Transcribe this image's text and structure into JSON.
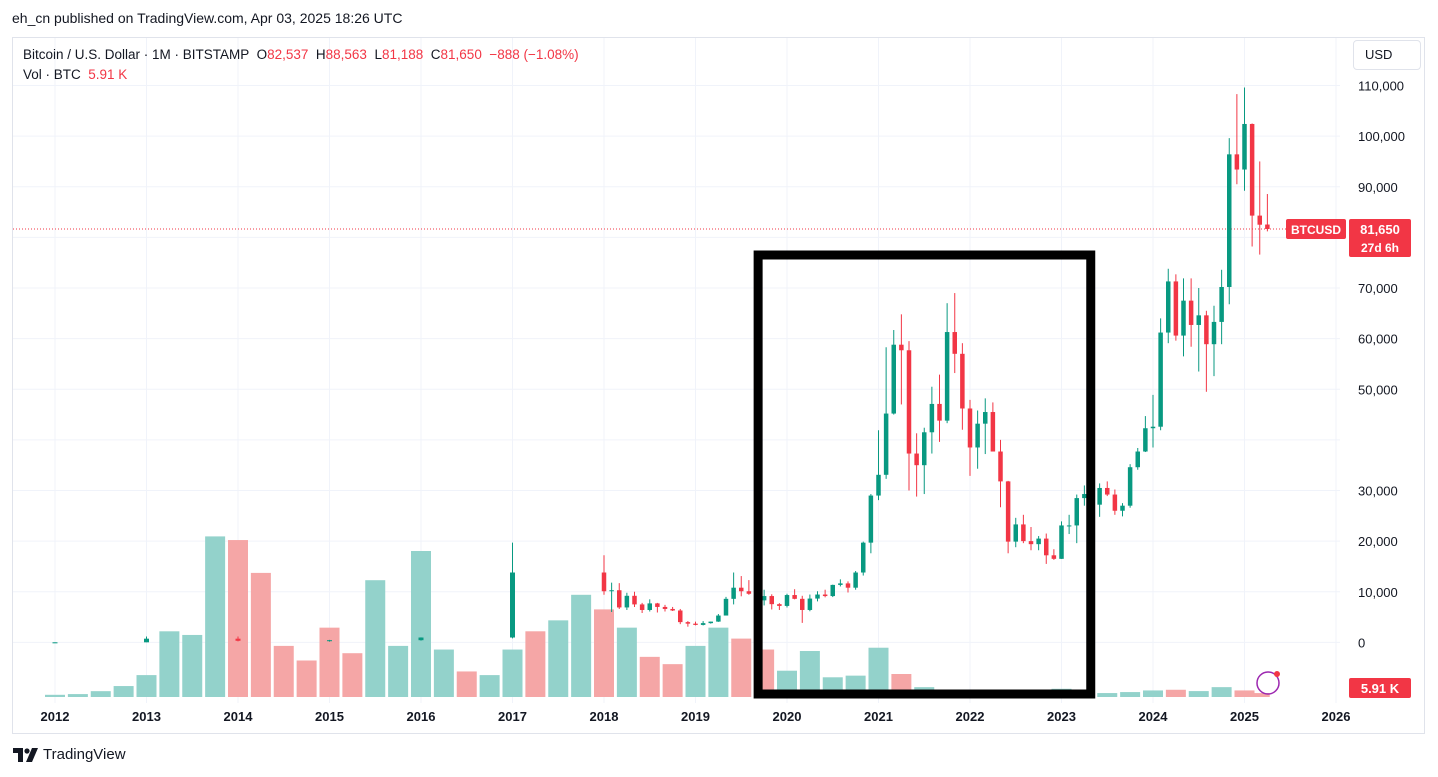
{
  "header": {
    "publisher_line": "eh_cn published on TradingView.com, Apr 03, 2025 18:26 UTC"
  },
  "legend": {
    "symbol": "Bitcoin / U.S. Dollar · 1M · BITSTAMP",
    "open_label": "O",
    "open": "82,537",
    "high_label": "H",
    "high": "88,563",
    "low_label": "L",
    "low": "81,188",
    "close_label": "C",
    "close": "81,650",
    "change": "−888 (−1.08%)",
    "vol_label": "Vol · BTC",
    "vol_value": "5.91 K"
  },
  "toolbar": {
    "currency_button": "USD"
  },
  "price_tags": {
    "symbol_tag": "BTCUSD",
    "last_price": "81,650",
    "countdown": "27d 6h",
    "volume_tag": "5.91 K"
  },
  "footer": {
    "brand": "TradingView"
  },
  "colors": {
    "up": "#089981",
    "down": "#f23645",
    "vol_up": "#93d2cb",
    "vol_down": "#f5a6a6",
    "grid": "#f0f3fa",
    "highlight_box": "#000000"
  },
  "chart_data": {
    "type": "candlestick",
    "ylim": [
      -10000,
      118000
    ],
    "y_ticks": [
      0,
      10000,
      20000,
      30000,
      40000,
      50000,
      60000,
      70000,
      80000,
      90000,
      100000,
      110000
    ],
    "y_tick_labels": [
      "0",
      "10,000",
      "20,000",
      "30,000",
      "",
      "50,000",
      "60,000",
      "70,000",
      "",
      "90,000",
      "100,000",
      "110,000"
    ],
    "x_ticks": [
      "2012",
      "2013",
      "2014",
      "2015",
      "2016",
      "2017",
      "2018",
      "2019",
      "2020",
      "2021",
      "2022",
      "2023",
      "2024",
      "2025",
      "2026"
    ],
    "x_tick_years": [
      2012,
      2013,
      2014,
      2015,
      2016,
      2017,
      2018,
      2019,
      2020,
      2021,
      2022,
      2023,
      2024,
      2025,
      2026
    ],
    "last_price": 81650,
    "highlight_box": {
      "from": "2019-10",
      "to": "2023-03"
    },
    "yearly_ohlc": [
      {
        "t": "2012-01",
        "o": 5,
        "h": 14,
        "l": 4,
        "c": 13
      },
      {
        "t": "2013-01",
        "o": 13,
        "h": 1150,
        "l": 13,
        "c": 730
      },
      {
        "t": "2014-01",
        "o": 730,
        "h": 1160,
        "l": 200,
        "c": 310
      },
      {
        "t": "2015-01",
        "o": 310,
        "h": 490,
        "l": 150,
        "c": 430
      },
      {
        "t": "2016-01",
        "o": 430,
        "h": 980,
        "l": 350,
        "c": 960
      },
      {
        "t": "2017-01",
        "o": 960,
        "h": 19700,
        "l": 780,
        "c": 13800
      }
    ],
    "monthly_ohlc": [
      {
        "t": "2018-01",
        "o": 13800,
        "h": 17200,
        "l": 9400,
        "c": 10100
      },
      {
        "t": "2018-02",
        "o": 10100,
        "h": 11800,
        "l": 6000,
        "c": 10300
      },
      {
        "t": "2018-03",
        "o": 10300,
        "h": 11700,
        "l": 6600,
        "c": 6900
      },
      {
        "t": "2018-04",
        "o": 6900,
        "h": 9800,
        "l": 6400,
        "c": 9200
      },
      {
        "t": "2018-05",
        "o": 9200,
        "h": 10000,
        "l": 7000,
        "c": 7500
      },
      {
        "t": "2018-06",
        "o": 7500,
        "h": 7800,
        "l": 5800,
        "c": 6400
      },
      {
        "t": "2018-07",
        "o": 6400,
        "h": 8500,
        "l": 6100,
        "c": 7700
      },
      {
        "t": "2018-08",
        "o": 7700,
        "h": 7800,
        "l": 5900,
        "c": 7000
      },
      {
        "t": "2018-09",
        "o": 7000,
        "h": 7400,
        "l": 6100,
        "c": 6600
      },
      {
        "t": "2018-10",
        "o": 6600,
        "h": 7000,
        "l": 6200,
        "c": 6300
      },
      {
        "t": "2018-11",
        "o": 6300,
        "h": 6600,
        "l": 3600,
        "c": 4000
      },
      {
        "t": "2018-12",
        "o": 4000,
        "h": 4200,
        "l": 3100,
        "c": 3700
      },
      {
        "t": "2019-01",
        "o": 3700,
        "h": 4100,
        "l": 3350,
        "c": 3450
      },
      {
        "t": "2019-02",
        "o": 3450,
        "h": 4200,
        "l": 3350,
        "c": 3800
      },
      {
        "t": "2019-03",
        "o": 3800,
        "h": 4100,
        "l": 3700,
        "c": 4100
      },
      {
        "t": "2019-04",
        "o": 4100,
        "h": 5600,
        "l": 4050,
        "c": 5300
      },
      {
        "t": "2019-05",
        "o": 5300,
        "h": 9000,
        "l": 5300,
        "c": 8600
      },
      {
        "t": "2019-06",
        "o": 8600,
        "h": 13800,
        "l": 7500,
        "c": 10800
      },
      {
        "t": "2019-07",
        "o": 10800,
        "h": 13100,
        "l": 9100,
        "c": 10100
      },
      {
        "t": "2019-08",
        "o": 10100,
        "h": 12300,
        "l": 9400,
        "c": 9600
      },
      {
        "t": "2019-09",
        "o": 9600,
        "h": 10900,
        "l": 7700,
        "c": 8300
      },
      {
        "t": "2019-10",
        "o": 8300,
        "h": 10400,
        "l": 7300,
        "c": 9150
      },
      {
        "t": "2019-11",
        "o": 9150,
        "h": 9500,
        "l": 6500,
        "c": 7550
      },
      {
        "t": "2019-12",
        "o": 7550,
        "h": 7750,
        "l": 6400,
        "c": 7200
      },
      {
        "t": "2020-01",
        "o": 7200,
        "h": 9600,
        "l": 6900,
        "c": 9350
      },
      {
        "t": "2020-02",
        "o": 9350,
        "h": 10500,
        "l": 8500,
        "c": 8600
      },
      {
        "t": "2020-03",
        "o": 8600,
        "h": 9200,
        "l": 3850,
        "c": 6400
      },
      {
        "t": "2020-04",
        "o": 6400,
        "h": 9450,
        "l": 6150,
        "c": 8650
      },
      {
        "t": "2020-05",
        "o": 8650,
        "h": 10100,
        "l": 8100,
        "c": 9450
      },
      {
        "t": "2020-06",
        "o": 9450,
        "h": 10400,
        "l": 8900,
        "c": 9150
      },
      {
        "t": "2020-07",
        "o": 9150,
        "h": 11400,
        "l": 8950,
        "c": 11350
      },
      {
        "t": "2020-08",
        "o": 11350,
        "h": 12450,
        "l": 11050,
        "c": 11650
      },
      {
        "t": "2020-09",
        "o": 11650,
        "h": 12050,
        "l": 9850,
        "c": 10800
      },
      {
        "t": "2020-10",
        "o": 10800,
        "h": 14100,
        "l": 10400,
        "c": 13800
      },
      {
        "t": "2020-11",
        "o": 13800,
        "h": 19900,
        "l": 13200,
        "c": 19700
      },
      {
        "t": "2020-12",
        "o": 19700,
        "h": 29300,
        "l": 17600,
        "c": 29000
      },
      {
        "t": "2021-01",
        "o": 29000,
        "h": 41900,
        "l": 28100,
        "c": 33100
      },
      {
        "t": "2021-02",
        "o": 33100,
        "h": 58300,
        "l": 32300,
        "c": 45200
      },
      {
        "t": "2021-03",
        "o": 45200,
        "h": 61700,
        "l": 45000,
        "c": 58800
      },
      {
        "t": "2021-04",
        "o": 58800,
        "h": 64800,
        "l": 47000,
        "c": 57700
      },
      {
        "t": "2021-05",
        "o": 57700,
        "h": 59500,
        "l": 30000,
        "c": 37300
      },
      {
        "t": "2021-06",
        "o": 37300,
        "h": 41300,
        "l": 28800,
        "c": 35000
      },
      {
        "t": "2021-07",
        "o": 35000,
        "h": 42400,
        "l": 29300,
        "c": 41500
      },
      {
        "t": "2021-08",
        "o": 41500,
        "h": 50500,
        "l": 37300,
        "c": 47100
      },
      {
        "t": "2021-09",
        "o": 47100,
        "h": 52900,
        "l": 39600,
        "c": 43800
      },
      {
        "t": "2021-10",
        "o": 43800,
        "h": 67000,
        "l": 43300,
        "c": 61300
      },
      {
        "t": "2021-11",
        "o": 61300,
        "h": 69000,
        "l": 53200,
        "c": 57000
      },
      {
        "t": "2021-12",
        "o": 57000,
        "h": 59100,
        "l": 42000,
        "c": 46200
      },
      {
        "t": "2022-01",
        "o": 46200,
        "h": 47900,
        "l": 32900,
        "c": 38500
      },
      {
        "t": "2022-02",
        "o": 38500,
        "h": 45800,
        "l": 34300,
        "c": 43200
      },
      {
        "t": "2022-03",
        "o": 43200,
        "h": 48200,
        "l": 37200,
        "c": 45500
      },
      {
        "t": "2022-04",
        "o": 45500,
        "h": 47400,
        "l": 37700,
        "c": 37700
      },
      {
        "t": "2022-05",
        "o": 37700,
        "h": 40000,
        "l": 26700,
        "c": 31800
      },
      {
        "t": "2022-06",
        "o": 31800,
        "h": 31900,
        "l": 17600,
        "c": 19900
      },
      {
        "t": "2022-07",
        "o": 19900,
        "h": 24600,
        "l": 18800,
        "c": 23300
      },
      {
        "t": "2022-08",
        "o": 23300,
        "h": 25200,
        "l": 19600,
        "c": 20000
      },
      {
        "t": "2022-09",
        "o": 20000,
        "h": 22800,
        "l": 18200,
        "c": 19400
      },
      {
        "t": "2022-10",
        "o": 19400,
        "h": 21000,
        "l": 18200,
        "c": 20500
      },
      {
        "t": "2022-11",
        "o": 20500,
        "h": 21500,
        "l": 15500,
        "c": 17200
      },
      {
        "t": "2022-12",
        "o": 17200,
        "h": 18400,
        "l": 16300,
        "c": 16500
      },
      {
        "t": "2023-01",
        "o": 16500,
        "h": 23900,
        "l": 16500,
        "c": 23100
      },
      {
        "t": "2023-02",
        "o": 23100,
        "h": 25200,
        "l": 21400,
        "c": 23100
      },
      {
        "t": "2023-03",
        "o": 23100,
        "h": 29200,
        "l": 19600,
        "c": 28500
      },
      {
        "t": "2023-04",
        "o": 28500,
        "h": 31000,
        "l": 27000,
        "c": 29300
      },
      {
        "t": "2023-05",
        "o": 29300,
        "h": 29800,
        "l": 25800,
        "c": 27200
      },
      {
        "t": "2023-06",
        "o": 27200,
        "h": 31400,
        "l": 24800,
        "c": 30500
      },
      {
        "t": "2023-07",
        "o": 30500,
        "h": 31800,
        "l": 28900,
        "c": 29200
      },
      {
        "t": "2023-08",
        "o": 29200,
        "h": 30200,
        "l": 25200,
        "c": 26000
      },
      {
        "t": "2023-09",
        "o": 26000,
        "h": 27500,
        "l": 24900,
        "c": 27000
      },
      {
        "t": "2023-10",
        "o": 27000,
        "h": 35200,
        "l": 26600,
        "c": 34600
      },
      {
        "t": "2023-11",
        "o": 34600,
        "h": 38400,
        "l": 34100,
        "c": 37700
      },
      {
        "t": "2023-12",
        "o": 37700,
        "h": 44700,
        "l": 37600,
        "c": 42300
      },
      {
        "t": "2024-01",
        "o": 42300,
        "h": 48900,
        "l": 38500,
        "c": 42600
      },
      {
        "t": "2024-02",
        "o": 42600,
        "h": 64000,
        "l": 41900,
        "c": 61200
      },
      {
        "t": "2024-03",
        "o": 61200,
        "h": 73800,
        "l": 59100,
        "c": 71300
      },
      {
        "t": "2024-04",
        "o": 71300,
        "h": 72700,
        "l": 59600,
        "c": 60600
      },
      {
        "t": "2024-05",
        "o": 60600,
        "h": 71900,
        "l": 56500,
        "c": 67500
      },
      {
        "t": "2024-06",
        "o": 67500,
        "h": 71900,
        "l": 58400,
        "c": 62700
      },
      {
        "t": "2024-07",
        "o": 62700,
        "h": 70000,
        "l": 53500,
        "c": 64600
      },
      {
        "t": "2024-08",
        "o": 64600,
        "h": 65500,
        "l": 49500,
        "c": 58900
      },
      {
        "t": "2024-09",
        "o": 58900,
        "h": 66500,
        "l": 52600,
        "c": 63300
      },
      {
        "t": "2024-10",
        "o": 63300,
        "h": 73600,
        "l": 58900,
        "c": 70200
      },
      {
        "t": "2024-11",
        "o": 70200,
        "h": 99600,
        "l": 66800,
        "c": 96400
      },
      {
        "t": "2024-12",
        "o": 96400,
        "h": 108300,
        "l": 90500,
        "c": 93400
      },
      {
        "t": "2025-01",
        "o": 93400,
        "h": 109600,
        "l": 89200,
        "c": 102400
      },
      {
        "t": "2025-02",
        "o": 102400,
        "h": 102500,
        "l": 78200,
        "c": 84300
      },
      {
        "t": "2025-03",
        "o": 84300,
        "h": 95000,
        "l": 76600,
        "c": 82500
      },
      {
        "t": "2025-04",
        "o": 82537,
        "h": 88563,
        "l": 81188,
        "c": 81650
      }
    ],
    "volume_series": {
      "name": "Vol · BTC",
      "dir": "up/down by period close",
      "values_2012_2019": [
        {
          "t": "2012-01",
          "v": 0.3,
          "up": true
        },
        {
          "t": "2012-04",
          "v": 0.4,
          "up": true
        },
        {
          "t": "2012-07",
          "v": 0.8,
          "up": true
        },
        {
          "t": "2012-10",
          "v": 1.5,
          "up": true
        },
        {
          "t": "2013-01",
          "v": 3.0,
          "up": true
        },
        {
          "t": "2013-04",
          "v": 9.0,
          "up": true
        },
        {
          "t": "2013-07",
          "v": 8.5,
          "up": true
        },
        {
          "t": "2013-10",
          "v": 22.0,
          "up": true
        },
        {
          "t": "2014-01",
          "v": 21.5,
          "up": false
        },
        {
          "t": "2014-04",
          "v": 17.0,
          "up": false
        },
        {
          "t": "2014-07",
          "v": 7.0,
          "up": false
        },
        {
          "t": "2014-10",
          "v": 5.0,
          "up": false
        },
        {
          "t": "2015-01",
          "v": 9.5,
          "up": false
        },
        {
          "t": "2015-04",
          "v": 6.0,
          "up": false
        },
        {
          "t": "2015-07",
          "v": 16.0,
          "up": true
        },
        {
          "t": "2015-10",
          "v": 7.0,
          "up": true
        },
        {
          "t": "2016-01",
          "v": 20.0,
          "up": true
        },
        {
          "t": "2016-04",
          "v": 6.5,
          "up": true
        },
        {
          "t": "2016-07",
          "v": 3.5,
          "up": false
        },
        {
          "t": "2016-10",
          "v": 3.0,
          "up": true
        },
        {
          "t": "2017-01",
          "v": 6.5,
          "up": true
        },
        {
          "t": "2017-04",
          "v": 9.0,
          "up": false
        },
        {
          "t": "2017-07",
          "v": 10.5,
          "up": true
        },
        {
          "t": "2017-10",
          "v": 14.0,
          "up": true
        },
        {
          "t": "2018-01",
          "v": 12.0,
          "up": false
        },
        {
          "t": "2018-04",
          "v": 9.5,
          "up": true
        },
        {
          "t": "2018-07",
          "v": 5.5,
          "up": false
        },
        {
          "t": "2018-10",
          "v": 4.5,
          "up": false
        },
        {
          "t": "2019-01",
          "v": 7.0,
          "up": true
        },
        {
          "t": "2019-04",
          "v": 9.5,
          "up": true
        },
        {
          "t": "2019-07",
          "v": 8.0,
          "up": false
        },
        {
          "t": "2019-10",
          "v": 6.5,
          "up": false
        }
      ],
      "values_2020_2025_thousand_btc": [
        {
          "t": "2020-01",
          "v": 8.0,
          "up": true
        },
        {
          "t": "2020-04",
          "v": 14.0,
          "up": true
        },
        {
          "t": "2020-07",
          "v": 6.0,
          "up": true
        },
        {
          "t": "2020-10",
          "v": 6.5,
          "up": true
        },
        {
          "t": "2021-01",
          "v": 15.0,
          "up": true
        },
        {
          "t": "2021-04",
          "v": 7.0,
          "up": false
        },
        {
          "t": "2021-07",
          "v": 3.0,
          "up": true
        },
        {
          "t": "2021-10",
          "v": 2.0,
          "up": false
        },
        {
          "t": "2022-01",
          "v": 2.0,
          "up": false
        },
        {
          "t": "2022-04",
          "v": 1.6,
          "up": false
        },
        {
          "t": "2022-07",
          "v": 1.8,
          "up": true
        },
        {
          "t": "2022-10",
          "v": 1.5,
          "up": false
        },
        {
          "t": "2023-01",
          "v": 2.5,
          "up": true
        },
        {
          "t": "2023-04",
          "v": 1.8,
          "up": true
        },
        {
          "t": "2023-07",
          "v": 1.2,
          "up": true
        },
        {
          "t": "2023-10",
          "v": 1.5,
          "up": true
        },
        {
          "t": "2024-01",
          "v": 2.0,
          "up": true
        },
        {
          "t": "2024-04",
          "v": 2.2,
          "up": false
        },
        {
          "t": "2024-07",
          "v": 1.8,
          "up": true
        },
        {
          "t": "2024-10",
          "v": 3.0,
          "up": true
        },
        {
          "t": "2025-01",
          "v": 2.0,
          "up": false
        },
        {
          "t": "2025-03",
          "v": 1.2,
          "up": false
        }
      ]
    }
  }
}
